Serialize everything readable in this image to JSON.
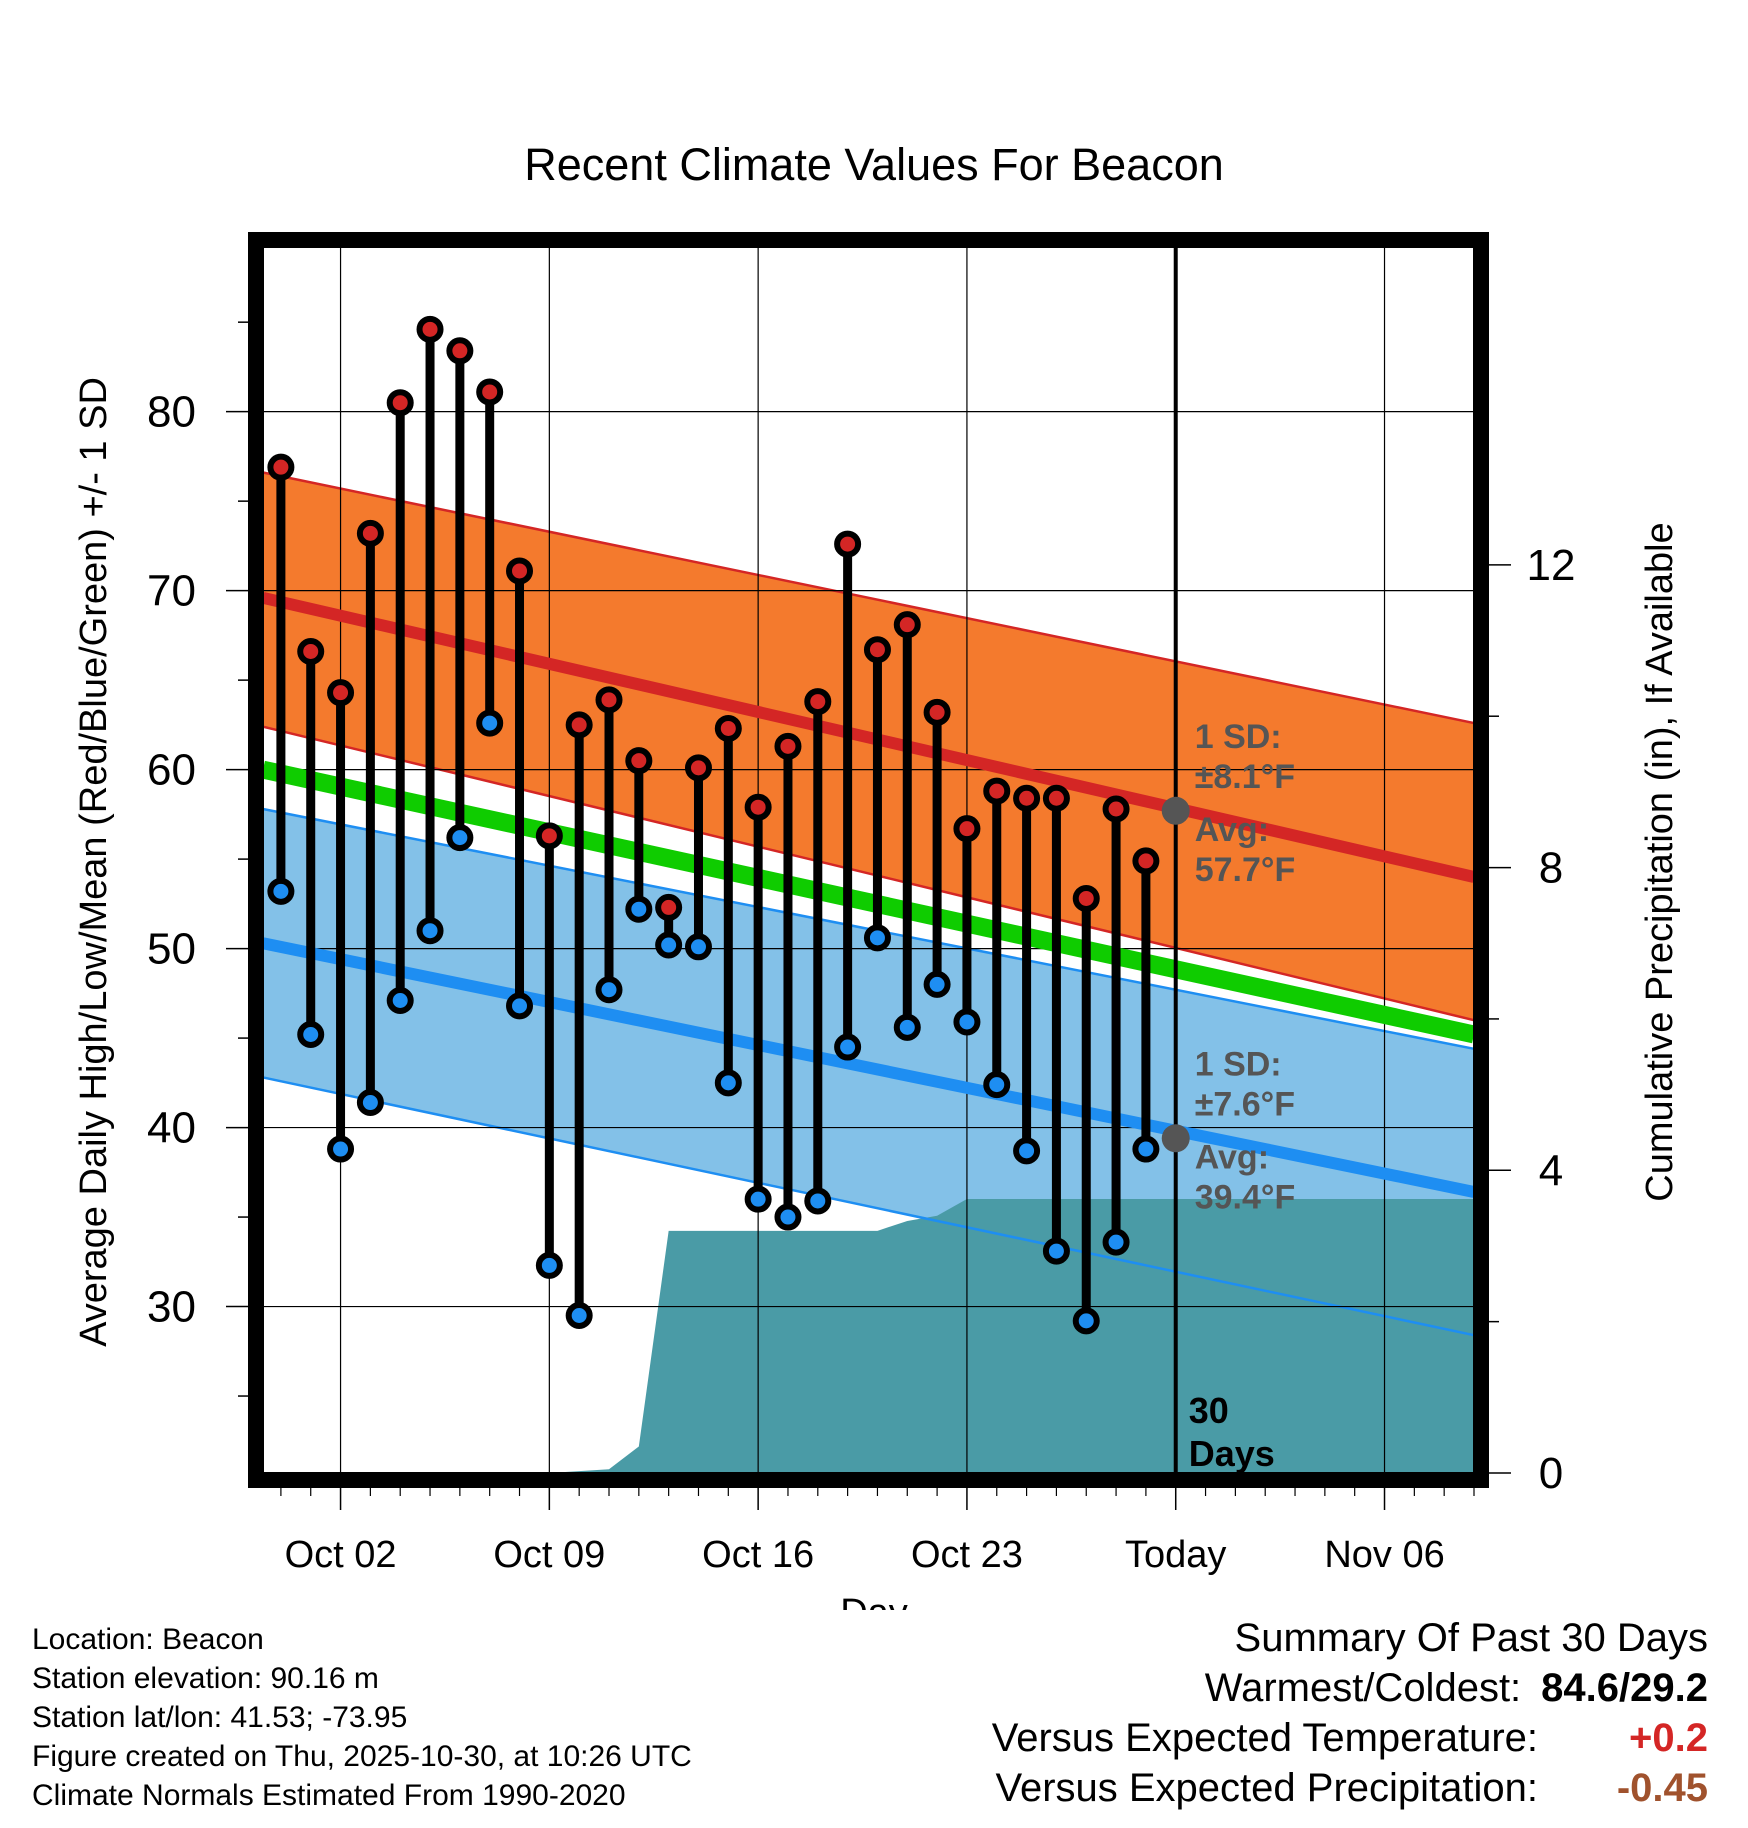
{
  "chart_data": {
    "type": "line",
    "title": "Recent Climate Values For Beacon",
    "xlabel": "Day",
    "ylabel_left": "Average Daily High/Low/Mean (Red/Blue/Green) +/- 1 SD",
    "ylabel_right": "Cumulative Precipitation (in), If Available",
    "x_domain": [
      -2.6,
      38.0
    ],
    "x_ticks": [
      {
        "day": 0,
        "label": "Oct 02"
      },
      {
        "day": 7,
        "label": "Oct 09"
      },
      {
        "day": 14,
        "label": "Oct 16"
      },
      {
        "day": 21,
        "label": "Oct 23"
      },
      {
        "day": 28,
        "label": "Today"
      },
      {
        "day": 35,
        "label": "Nov 06"
      }
    ],
    "y_left": {
      "range": [
        20.7,
        89.2
      ],
      "ticks": [
        30,
        40,
        50,
        60,
        70,
        80
      ]
    },
    "y_right": {
      "range": [
        0,
        16.2
      ],
      "ticks": [
        0,
        4,
        8,
        12
      ]
    },
    "today_day": 28,
    "today_label": [
      "30",
      "Days"
    ],
    "normals": {
      "high_mean": {
        "start": 69.6,
        "end": 54.0
      },
      "high_sd_upper": {
        "start": 76.6,
        "end": 62.6
      },
      "high_sd_lower": {
        "start": 62.4,
        "end": 46.0
      },
      "low_mean": {
        "start": 50.3,
        "end": 36.4
      },
      "low_sd_upper": {
        "start": 57.8,
        "end": 44.4
      },
      "low_sd_lower": {
        "start": 42.8,
        "end": 28.4
      },
      "mean_line": {
        "start": 60.0,
        "end": 45.2
      }
    },
    "daily": [
      {
        "day": -2,
        "high": 76.9,
        "low": 53.2
      },
      {
        "day": -1,
        "high": 66.6,
        "low": 45.2
      },
      {
        "day": 0,
        "high": 64.3,
        "low": 38.8
      },
      {
        "day": 1,
        "high": 73.2,
        "low": 41.4
      },
      {
        "day": 2,
        "high": 80.5,
        "low": 47.1
      },
      {
        "day": 3,
        "high": 84.6,
        "low": 51.0
      },
      {
        "day": 4,
        "high": 83.4,
        "low": 56.2
      },
      {
        "day": 5,
        "high": 81.1,
        "low": 62.6
      },
      {
        "day": 6,
        "high": 71.1,
        "low": 46.8
      },
      {
        "day": 7,
        "high": 56.3,
        "low": 32.3
      },
      {
        "day": 8,
        "high": 62.5,
        "low": 29.5
      },
      {
        "day": 9,
        "high": 63.9,
        "low": 47.7
      },
      {
        "day": 10,
        "high": 60.5,
        "low": 52.2
      },
      {
        "day": 11,
        "high": 52.3,
        "low": 50.2
      },
      {
        "day": 12,
        "high": 60.1,
        "low": 50.1
      },
      {
        "day": 13,
        "high": 62.3,
        "low": 42.5
      },
      {
        "day": 14,
        "high": 57.9,
        "low": 36.0
      },
      {
        "day": 15,
        "high": 61.3,
        "low": 35.0
      },
      {
        "day": 16,
        "high": 63.8,
        "low": 35.9
      },
      {
        "day": 17,
        "high": 72.6,
        "low": 44.5
      },
      {
        "day": 18,
        "high": 66.7,
        "low": 50.6
      },
      {
        "day": 19,
        "high": 68.1,
        "low": 45.6
      },
      {
        "day": 20,
        "high": 63.2,
        "low": 48.0
      },
      {
        "day": 21,
        "high": 56.7,
        "low": 45.9
      },
      {
        "day": 22,
        "high": 58.8,
        "low": 42.4
      },
      {
        "day": 23,
        "high": 58.4,
        "low": 38.7
      },
      {
        "day": 24,
        "high": 58.4,
        "low": 33.1
      },
      {
        "day": 25,
        "high": 52.8,
        "low": 29.2
      },
      {
        "day": 26,
        "high": 57.8,
        "low": 33.6
      },
      {
        "day": 27,
        "high": 54.9,
        "low": 38.8
      }
    ],
    "precip_cumulative": [
      {
        "day": -2.6,
        "value": 0.0
      },
      {
        "day": 7.0,
        "value": 0.0
      },
      {
        "day": 9.0,
        "value": 0.05
      },
      {
        "day": 10.0,
        "value": 0.35
      },
      {
        "day": 11.0,
        "value": 3.2
      },
      {
        "day": 18.0,
        "value": 3.2
      },
      {
        "day": 19.0,
        "value": 3.33
      },
      {
        "day": 20.0,
        "value": 3.4
      },
      {
        "day": 21.0,
        "value": 3.62
      },
      {
        "day": 38.0,
        "value": 3.62
      }
    ],
    "annotations": {
      "high": {
        "sd_label": "1 SD:",
        "sd_value": "±8.1°F",
        "avg_label": "Avg:",
        "avg_value": "57.7°F",
        "avg": 57.7
      },
      "low": {
        "sd_label": "1 SD:",
        "sd_value": "±7.6°F",
        "avg_label": "Avg:",
        "avg_value": "39.4°F",
        "avg": 39.4
      }
    },
    "colors": {
      "high_band": "#f47a2d",
      "high_line": "#d42625",
      "low_band": "#83c1e8",
      "low_line": "#1e8ef2",
      "mean_line": "#0fcc00",
      "precip": "#4a9ba6",
      "high_marker": "#d42625",
      "low_marker": "#1e8ef2",
      "annotation": "#555555"
    }
  },
  "footer": {
    "location": "Location: Beacon",
    "elevation": "Station elevation: 90.16 m",
    "latlon": "Station lat/lon: 41.53; -73.95",
    "created": "Figure created on Thu, 2025-10-30, at 10:26 UTC",
    "normals": "Climate Normals Estimated From 1990-2020"
  },
  "summary": {
    "title": "Summary Of Past 30 Days",
    "warm_cold_label": "Warmest/Coldest:",
    "warm_cold_value": "84.6/29.2",
    "temp_label": "Versus Expected Temperature:",
    "temp_value": "+0.2",
    "temp_color": "#d42625",
    "precip_label": "Versus Expected Precipitation:",
    "precip_value": "-0.45",
    "precip_color": "#a0522d"
  }
}
